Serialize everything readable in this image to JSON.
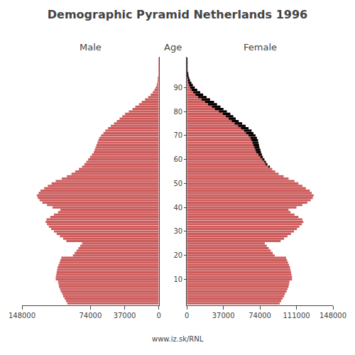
{
  "chart_data": {
    "type": "bar",
    "orientation": "horizontal",
    "title": "Demographic Pyramid Netherlands 1996",
    "ylabel": "Age",
    "annotations": [
      "www.iz.sk/RNL"
    ],
    "grid": false,
    "y": [
      0,
      1,
      2,
      3,
      4,
      5,
      6,
      7,
      8,
      9,
      10,
      11,
      12,
      13,
      14,
      15,
      16,
      17,
      18,
      19,
      20,
      21,
      22,
      23,
      24,
      25,
      26,
      27,
      28,
      29,
      30,
      31,
      32,
      33,
      34,
      35,
      36,
      37,
      38,
      39,
      40,
      41,
      42,
      43,
      44,
      45,
      46,
      47,
      48,
      49,
      50,
      51,
      52,
      53,
      54,
      55,
      56,
      57,
      58,
      59,
      60,
      61,
      62,
      63,
      64,
      65,
      66,
      67,
      68,
      69,
      70,
      71,
      72,
      73,
      74,
      75,
      76,
      77,
      78,
      79,
      80,
      81,
      82,
      83,
      84,
      85,
      86,
      87,
      88,
      89,
      90,
      91,
      92,
      93,
      94,
      95,
      96,
      97,
      98,
      99,
      100,
      101,
      102
    ],
    "ylim": [
      -0.8,
      102.8
    ],
    "yticks": [
      10,
      20,
      30,
      40,
      50,
      60,
      70,
      80,
      90
    ],
    "series": [
      {
        "name": "Male",
        "color": "#cd5c5c",
        "xlim": [
          148000,
          0
        ],
        "xticks": [
          148000,
          74000,
          37000,
          0
        ],
        "values": [
          99000,
          100500,
          102000,
          103500,
          104500,
          106000,
          107000,
          108000,
          108500,
          109000,
          111500,
          111500,
          111000,
          110500,
          110000,
          109500,
          108500,
          107500,
          106500,
          105500,
          93000,
          91000,
          89000,
          87000,
          85000,
          83000,
          100000,
          103500,
          107000,
          110500,
          113500,
          116500,
          119000,
          121000,
          122500,
          121500,
          117500,
          113500,
          109000,
          106500,
          115000,
          121000,
          126000,
          129000,
          131000,
          132000,
          130000,
          128000,
          124000,
          120000,
          116000,
          111500,
          105000,
          99500,
          94500,
          90500,
          86500,
          83000,
          80500,
          78500,
          76500,
          74500,
          72500,
          70500,
          69500,
          68500,
          67500,
          66500,
          65500,
          64500,
          62500,
          60000,
          58000,
          55000,
          52000,
          48500,
          45500,
          42500,
          39500,
          36500,
          32500,
          28500,
          25500,
          21500,
          18500,
          15000,
          11500,
          8800,
          6600,
          4800,
          3400,
          2300,
          1600,
          1000,
          650,
          380,
          220,
          130,
          70,
          38,
          18,
          9,
          4
        ]
      },
      {
        "name": "Female",
        "color": "#cd5c5c",
        "xlim": [
          0,
          148000
        ],
        "xticks": [
          0,
          37000,
          74000,
          111000,
          148000
        ],
        "values": [
          94000,
          95500,
          97000,
          98500,
          99500,
          101000,
          102000,
          103000,
          103500,
          104000,
          106500,
          106500,
          106000,
          105500,
          105000,
          104500,
          103500,
          102500,
          101500,
          100500,
          89000,
          87000,
          85000,
          83000,
          81000,
          79000,
          95000,
          98500,
          102000,
          105500,
          108500,
          111500,
          114000,
          116500,
          118000,
          117000,
          113000,
          109000,
          105000,
          103000,
          111000,
          117000,
          122000,
          125500,
          127500,
          128500,
          126500,
          124500,
          120500,
          117000,
          113000,
          109000,
          103000,
          98000,
          93000,
          89500,
          86500,
          83500,
          81500,
          80000,
          78500,
          77000,
          76000,
          75000,
          74500,
          73500,
          73000,
          72500,
          72000,
          71000,
          69500,
          67500,
          65500,
          62500,
          59500,
          56000,
          52500,
          49500,
          47000,
          44000,
          40500,
          37000,
          34000,
          30500,
          27500,
          23500,
          20000,
          16500,
          13500,
          10500,
          8000,
          6000,
          4500,
          3200,
          2300,
          1600,
          1000,
          620,
          370,
          210,
          110,
          55,
          27
        ]
      },
      {
        "color": "#000000",
        "stacked": true,
        "values": [
          null,
          null,
          null,
          null,
          null,
          null,
          null,
          null,
          null,
          null,
          null,
          null,
          null,
          null,
          null,
          null,
          null,
          null,
          null,
          null,
          null,
          null,
          null,
          null,
          null,
          null,
          null,
          null,
          null,
          null,
          null,
          null,
          null,
          null,
          null,
          null,
          null,
          null,
          null,
          null,
          null,
          null,
          null,
          null,
          null,
          null,
          null,
          null,
          null,
          null,
          null,
          null,
          null,
          null,
          null,
          null,
          null,
          500,
          1000,
          1500,
          2000,
          2500,
          3500,
          4500,
          5000,
          5000,
          5500,
          6000,
          6500,
          6500,
          7000,
          7500,
          7500,
          7500,
          7500,
          7500,
          7000,
          7000,
          7500,
          7500,
          8000,
          8500,
          8500,
          9000,
          9000,
          8500,
          8500,
          7700,
          6900,
          5700,
          4600,
          3700,
          2900,
          2200,
          1650,
          1220,
          780,
          490,
          300,
          172,
          92,
          46,
          23
        ]
      }
    ]
  }
}
